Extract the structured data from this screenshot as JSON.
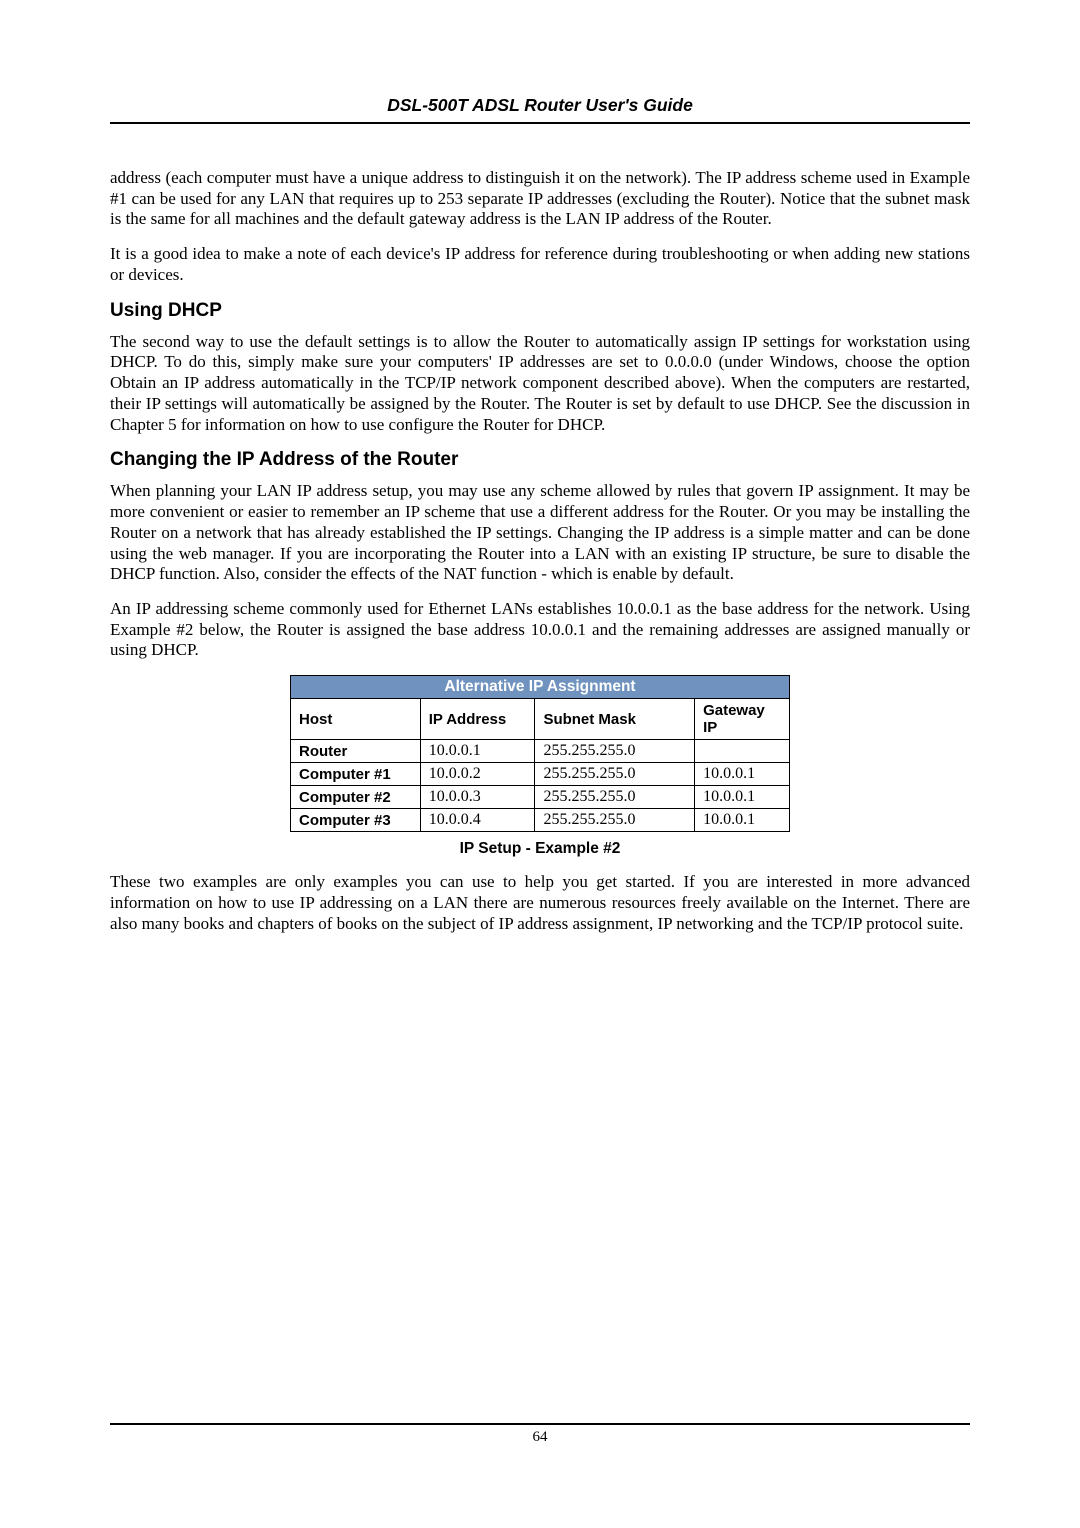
{
  "header": {
    "title": "DSL-500T ADSL Router User's Guide"
  },
  "paragraphs": {
    "p1": "address (each computer must have a unique address to distinguish it on the network). The IP address scheme used in Example #1 can be used for any LAN that requires up to 253 separate IP addresses (excluding the Router). Notice that the subnet mask is the same for all machines and the default gateway address is the LAN IP address of the Router.",
    "p2": "It is a good idea to make a note of each device's IP address for reference during troubleshooting or when adding new stations or devices.",
    "p3": "The second way to use the default settings is to allow the Router to automatically assign IP settings for workstation using DHCP. To do this, simply make sure your computers' IP addresses are set to 0.0.0.0 (under Windows, choose the option Obtain an IP address automatically in the TCP/IP network component described above). When the computers are restarted, their IP settings will automatically be assigned by the Router.  The Router is set by default to use DHCP. See the discussion in Chapter 5 for information on how to use configure the Router for DHCP.",
    "p4": "When planning your LAN IP address setup, you may use any scheme allowed by rules that govern IP assignment. It may be more convenient or easier to remember an IP scheme that use a different address for the Router. Or you may be installing the Router on a network that has already established the IP settings. Changing the IP address is a simple matter and can be done using the web manager. If you are incorporating the Router into a LAN with an existing IP structure, be sure to disable the DHCP function. Also, consider the effects of the NAT function - which is enable by default.",
    "p5": "An IP addressing scheme commonly used for Ethernet LANs establishes 10.0.0.1 as the base address for the network. Using Example #2 below, the Router is assigned the base address 10.0.0.1 and the remaining addresses are assigned manually or using DHCP.",
    "p6": "These two examples are only examples you can use to help you get started. If you are interested in more advanced information on how to use IP addressing on a LAN there are numerous resources freely available on the Internet. There are also many books and chapters of books on the subject of IP address assignment, IP networking and the TCP/IP protocol suite."
  },
  "headings": {
    "h1": "Using DHCP",
    "h2": "Changing the IP Address of the Router"
  },
  "table": {
    "title": "Alternative IP Assignment",
    "title_bg": "#7092be",
    "title_color": "#ffffff",
    "columns": [
      "Host",
      "IP Address",
      "Subnet Mask",
      "Gateway IP"
    ],
    "col_widths": [
      "130px",
      "115px",
      "160px",
      "95px"
    ],
    "rows": [
      [
        "Router",
        "10.0.0.1",
        "255.255.255.0",
        ""
      ],
      [
        "Computer #1",
        "10.0.0.2",
        "255.255.255.0",
        "10.0.0.1"
      ],
      [
        "Computer #2",
        "10.0.0.3",
        "255.255.255.0",
        "10.0.0.1"
      ],
      [
        "Computer #3",
        "10.0.0.4",
        "255.255.255.0",
        "10.0.0.1"
      ]
    ],
    "caption": "IP Setup - Example #2"
  },
  "footer": {
    "page_number": "64"
  }
}
